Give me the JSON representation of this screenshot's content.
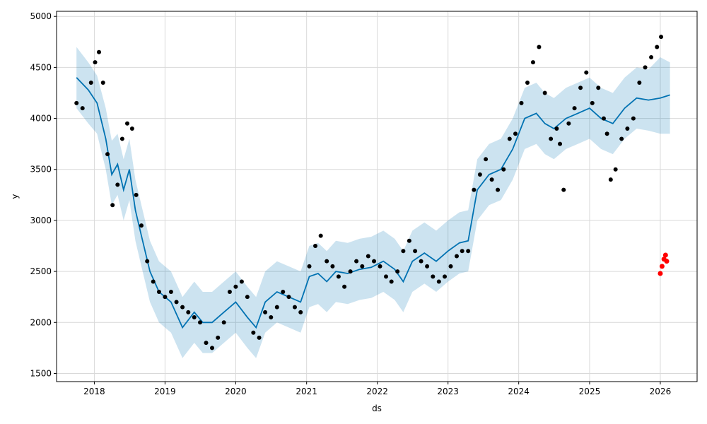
{
  "chart_data": {
    "type": "scatter",
    "xlabel": "ds",
    "ylabel": "y",
    "xlim": [
      "2017-06-20",
      "2026-07-10"
    ],
    "ylim": [
      1420,
      5050
    ],
    "x_ticks": [
      "2018",
      "2019",
      "2020",
      "2021",
      "2022",
      "2023",
      "2024",
      "2025",
      "2026"
    ],
    "y_ticks": [
      1500,
      2000,
      2500,
      3000,
      3500,
      4000,
      4500,
      5000
    ],
    "grid": true,
    "colors": {
      "observed": "#000000",
      "forecast_line": "#0072B2",
      "uncertainty_band": "#0072B2",
      "highlight": "#ff0000"
    },
    "series": [
      {
        "role": "forecast",
        "x": [
          "2017-10-01",
          "2017-12-01",
          "2018-01-15",
          "2018-03-01",
          "2018-04-01",
          "2018-05-01",
          "2018-06-01",
          "2018-07-01",
          "2018-08-01",
          "2018-09-01",
          "2018-10-15",
          "2018-12-01",
          "2019-02-01",
          "2019-04-01",
          "2019-06-01",
          "2019-07-15",
          "2019-09-01",
          "2019-11-01",
          "2020-01-01",
          "2020-03-01",
          "2020-04-15",
          "2020-06-01",
          "2020-08-01",
          "2020-10-01",
          "2020-12-01",
          "2021-01-15",
          "2021-03-01",
          "2021-04-15",
          "2021-06-01",
          "2021-08-01",
          "2021-10-01",
          "2021-12-01",
          "2022-02-01",
          "2022-04-01",
          "2022-05-15",
          "2022-07-01",
          "2022-09-01",
          "2022-11-01",
          "2023-01-01",
          "2023-03-01",
          "2023-04-15",
          "2023-06-01",
          "2023-08-01",
          "2023-10-01",
          "2023-12-01",
          "2024-02-01",
          "2024-04-01",
          "2024-05-15",
          "2024-07-01",
          "2024-09-01",
          "2024-11-01",
          "2025-01-01",
          "2025-03-01",
          "2025-05-01",
          "2025-07-01",
          "2025-09-01",
          "2025-11-01",
          "2026-01-01",
          "2026-02-20"
        ],
        "y": [
          4400,
          4280,
          4150,
          3800,
          3450,
          3550,
          3300,
          3500,
          3100,
          2850,
          2500,
          2300,
          2200,
          1950,
          2100,
          2000,
          2000,
          2100,
          2200,
          2050,
          1950,
          2200,
          2300,
          2250,
          2200,
          2450,
          2480,
          2400,
          2500,
          2480,
          2520,
          2540,
          2600,
          2520,
          2400,
          2600,
          2680,
          2600,
          2700,
          2780,
          2800,
          3300,
          3450,
          3500,
          3700,
          4000,
          4050,
          3950,
          3900,
          4000,
          4050,
          4100,
          4000,
          3950,
          4100,
          4200,
          4180,
          4200,
          4230
        ]
      },
      {
        "role": "uncertainty_upper",
        "x": [
          "2017-10-01",
          "2017-12-01",
          "2018-01-15",
          "2018-03-01",
          "2018-04-01",
          "2018-05-01",
          "2018-06-01",
          "2018-07-01",
          "2018-08-01",
          "2018-09-01",
          "2018-10-15",
          "2018-12-01",
          "2019-02-01",
          "2019-04-01",
          "2019-06-01",
          "2019-07-15",
          "2019-09-01",
          "2019-11-01",
          "2020-01-01",
          "2020-03-01",
          "2020-04-15",
          "2020-06-01",
          "2020-08-01",
          "2020-10-01",
          "2020-12-01",
          "2021-01-15",
          "2021-03-01",
          "2021-04-15",
          "2021-06-01",
          "2021-08-01",
          "2021-10-01",
          "2021-12-01",
          "2022-02-01",
          "2022-04-01",
          "2022-05-15",
          "2022-07-01",
          "2022-09-01",
          "2022-11-01",
          "2023-01-01",
          "2023-03-01",
          "2023-04-15",
          "2023-06-01",
          "2023-08-01",
          "2023-10-01",
          "2023-12-01",
          "2024-02-01",
          "2024-04-01",
          "2024-05-15",
          "2024-07-01",
          "2024-09-01",
          "2024-11-01",
          "2025-01-01",
          "2025-03-01",
          "2025-05-01",
          "2025-07-01",
          "2025-09-01",
          "2025-11-01",
          "2026-01-01",
          "2026-02-20"
        ],
        "y": [
          4700,
          4550,
          4420,
          4100,
          3780,
          3850,
          3600,
          3800,
          3400,
          3150,
          2800,
          2600,
          2500,
          2250,
          2400,
          2300,
          2300,
          2400,
          2500,
          2350,
          2250,
          2500,
          2600,
          2550,
          2500,
          2750,
          2780,
          2700,
          2800,
          2780,
          2820,
          2840,
          2900,
          2820,
          2700,
          2900,
          2980,
          2900,
          3000,
          3080,
          3100,
          3600,
          3750,
          3800,
          4000,
          4300,
          4350,
          4250,
          4200,
          4300,
          4350,
          4400,
          4300,
          4250,
          4400,
          4500,
          4480,
          4600,
          4550
        ]
      },
      {
        "role": "uncertainty_lower",
        "x": [
          "2017-10-01",
          "2017-12-01",
          "2018-01-15",
          "2018-03-01",
          "2018-04-01",
          "2018-05-01",
          "2018-06-01",
          "2018-07-01",
          "2018-08-01",
          "2018-09-01",
          "2018-10-15",
          "2018-12-01",
          "2019-02-01",
          "2019-04-01",
          "2019-06-01",
          "2019-07-15",
          "2019-09-01",
          "2019-11-01",
          "2020-01-01",
          "2020-03-01",
          "2020-04-15",
          "2020-06-01",
          "2020-08-01",
          "2020-10-01",
          "2020-12-01",
          "2021-01-15",
          "2021-03-01",
          "2021-04-15",
          "2021-06-01",
          "2021-08-01",
          "2021-10-01",
          "2021-12-01",
          "2022-02-01",
          "2022-04-01",
          "2022-05-15",
          "2022-07-01",
          "2022-09-01",
          "2022-11-01",
          "2023-01-01",
          "2023-03-01",
          "2023-04-15",
          "2023-06-01",
          "2023-08-01",
          "2023-10-01",
          "2023-12-01",
          "2024-02-01",
          "2024-04-01",
          "2024-05-15",
          "2024-07-01",
          "2024-09-01",
          "2024-11-01",
          "2025-01-01",
          "2025-03-01",
          "2025-05-01",
          "2025-07-01",
          "2025-09-01",
          "2025-11-01",
          "2026-01-01",
          "2026-02-20"
        ],
        "y": [
          4100,
          3950,
          3850,
          3500,
          3150,
          3250,
          3000,
          3200,
          2800,
          2550,
          2200,
          2000,
          1900,
          1650,
          1800,
          1700,
          1700,
          1800,
          1900,
          1750,
          1650,
          1900,
          2000,
          1950,
          1900,
          2150,
          2180,
          2100,
          2200,
          2180,
          2220,
          2240,
          2300,
          2220,
          2100,
          2300,
          2380,
          2300,
          2400,
          2480,
          2500,
          3000,
          3150,
          3200,
          3400,
          3700,
          3750,
          3650,
          3600,
          3700,
          3750,
          3800,
          3700,
          3650,
          3800,
          3900,
          3880,
          3850,
          3850
        ]
      },
      {
        "role": "observed",
        "x": [
          "2017-10-01",
          "2017-11-01",
          "2017-12-15",
          "2018-01-05",
          "2018-01-25",
          "2018-02-15",
          "2018-03-10",
          "2018-04-05",
          "2018-05-01",
          "2018-05-25",
          "2018-06-20",
          "2018-07-15",
          "2018-08-05",
          "2018-09-01",
          "2018-10-01",
          "2018-11-01",
          "2018-12-01",
          "2019-01-01",
          "2019-02-01",
          "2019-03-01",
          "2019-04-01",
          "2019-05-01",
          "2019-06-01",
          "2019-07-01",
          "2019-08-01",
          "2019-09-01",
          "2019-10-01",
          "2019-11-01",
          "2019-12-01",
          "2020-01-01",
          "2020-02-01",
          "2020-03-01",
          "2020-04-01",
          "2020-05-01",
          "2020-06-01",
          "2020-07-01",
          "2020-08-01",
          "2020-09-01",
          "2020-10-01",
          "2020-11-01",
          "2020-12-01",
          "2021-01-15",
          "2021-02-15",
          "2021-03-15",
          "2021-04-15",
          "2021-05-15",
          "2021-06-15",
          "2021-07-15",
          "2021-08-15",
          "2021-09-15",
          "2021-10-15",
          "2021-11-15",
          "2021-12-15",
          "2022-01-15",
          "2022-02-15",
          "2022-03-15",
          "2022-04-15",
          "2022-05-15",
          "2022-06-15",
          "2022-07-15",
          "2022-08-15",
          "2022-09-15",
          "2022-10-15",
          "2022-11-15",
          "2022-12-15",
          "2023-01-15",
          "2023-02-15",
          "2023-03-15",
          "2023-04-15",
          "2023-05-15",
          "2023-06-15",
          "2023-07-15",
          "2023-08-15",
          "2023-09-15",
          "2023-10-15",
          "2023-11-15",
          "2023-12-15",
          "2024-01-15",
          "2024-02-15",
          "2024-03-15",
          "2024-04-15",
          "2024-05-15",
          "2024-06-15",
          "2024-07-15",
          "2024-08-01",
          "2024-08-20",
          "2024-09-15",
          "2024-10-15",
          "2024-11-15",
          "2024-12-15",
          "2025-01-15",
          "2025-02-15",
          "2025-03-15",
          "2025-04-01",
          "2025-04-20",
          "2025-05-15",
          "2025-06-15",
          "2025-07-15",
          "2025-08-15",
          "2025-09-15",
          "2025-10-15",
          "2025-11-15",
          "2025-12-15",
          "2026-01-05"
        ],
        "y": [
          4150,
          4100,
          4350,
          4550,
          4650,
          4350,
          3650,
          3150,
          3350,
          3800,
          3950,
          3900,
          3250,
          2950,
          2600,
          2400,
          2300,
          2250,
          2300,
          2200,
          2150,
          2100,
          2050,
          2000,
          1800,
          1750,
          1850,
          2000,
          2300,
          2350,
          2400,
          2250,
          1900,
          1850,
          2100,
          2050,
          2150,
          2300,
          2250,
          2150,
          2100,
          2550,
          2750,
          2850,
          2600,
          2550,
          2450,
          2350,
          2500,
          2600,
          2550,
          2650,
          2600,
          2550,
          2450,
          2400,
          2500,
          2700,
          2800,
          2700,
          2600,
          2550,
          2450,
          2400,
          2450,
          2550,
          2650,
          2700,
          2700,
          3300,
          3450,
          3600,
          3400,
          3300,
          3500,
          3800,
          3850,
          4150,
          4350,
          4550,
          4700,
          4250,
          3800,
          3900,
          3750,
          3300,
          3950,
          4100,
          4300,
          4450,
          4150,
          4300,
          4000,
          3850,
          3400,
          3500,
          3800,
          3900,
          4000,
          4350,
          4500,
          4600,
          4700,
          4800
        ]
      },
      {
        "role": "highlight",
        "x": [
          "2026-01-01",
          "2026-01-10",
          "2026-01-20",
          "2026-01-28",
          "2026-02-03"
        ],
        "y": [
          2480,
          2550,
          2620,
          2660,
          2600
        ]
      }
    ]
  }
}
